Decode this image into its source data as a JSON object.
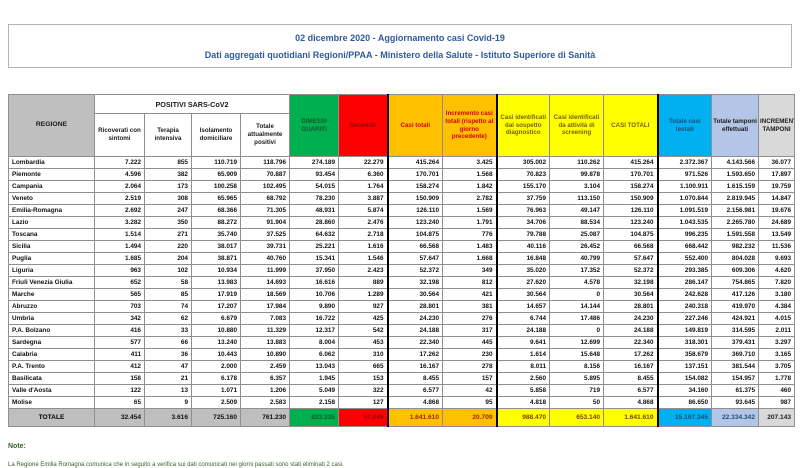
{
  "header": {
    "title_line": "02 dicembre 2020 - Aggiornamento casi Covid-19",
    "subtitle_line": "Dati aggregati quotidiani Regioni/PPAA - Ministero della Salute - Istituto Superiore di Sanità"
  },
  "table": {
    "headers": {
      "regione": "REGIONE",
      "positivi_group": "POSITIVI SARS-CoV2",
      "sub": [
        "Ricoverati con sintomi",
        "Terapia intensiva",
        "Isolamento domiciliare",
        "Totale attualmente positivi"
      ],
      "guariti": "DIMESSI GUARITI",
      "deceduti": "Deceduti",
      "casi_totali": "Casi totali",
      "incremento": "Incremento casi totali (rispetto al giorno precedente)",
      "sospetto": "Casi identificati dal sospetto diagnostico",
      "screening": "Casi identificati da attività di screening",
      "casi_totali_2": "CASI TOTALI",
      "testati": "Totale casi testati",
      "tamponi": "Totale tamponi effettuati",
      "incremento_tamponi": "INCREMENTO TAMPONI"
    },
    "rows": [
      {
        "region": "Lombardia",
        "values": [
          "7.222",
          "855",
          "110.719",
          "118.796",
          "274.189",
          "22.279",
          "415.264",
          "3.425",
          "305.002",
          "110.262",
          "415.264",
          "2.372.367",
          "4.143.566",
          "36.077"
        ]
      },
      {
        "region": "Piemonte",
        "values": [
          "4.596",
          "382",
          "65.909",
          "70.887",
          "93.454",
          "6.360",
          "170.701",
          "1.568",
          "70.823",
          "99.878",
          "170.701",
          "971.526",
          "1.593.650",
          "17.897"
        ]
      },
      {
        "region": "Campania",
        "values": [
          "2.064",
          "173",
          "100.258",
          "102.495",
          "54.015",
          "1.764",
          "158.274",
          "1.842",
          "155.170",
          "3.104",
          "158.274",
          "1.100.911",
          "1.615.159",
          "19.759"
        ]
      },
      {
        "region": "Veneto",
        "values": [
          "2.519",
          "308",
          "65.965",
          "68.792",
          "78.230",
          "3.887",
          "150.909",
          "2.782",
          "37.759",
          "113.150",
          "150.909",
          "1.070.844",
          "2.819.945",
          "14.847"
        ]
      },
      {
        "region": "Emilia-Romagna",
        "values": [
          "2.692",
          "247",
          "68.366",
          "71.305",
          "48.931",
          "5.874",
          "126.110",
          "1.569",
          "76.963",
          "49.147",
          "126.110",
          "1.091.519",
          "2.156.981",
          "19.676"
        ]
      },
      {
        "region": "Lazio",
        "values": [
          "3.282",
          "350",
          "88.272",
          "91.904",
          "28.860",
          "2.476",
          "123.240",
          "1.791",
          "34.706",
          "88.534",
          "123.240",
          "1.043.535",
          "2.265.780",
          "24.689"
        ]
      },
      {
        "region": "Toscana",
        "values": [
          "1.514",
          "271",
          "35.740",
          "37.525",
          "64.632",
          "2.718",
          "104.875",
          "776",
          "79.788",
          "25.087",
          "104.875",
          "996.235",
          "1.591.558",
          "13.549"
        ]
      },
      {
        "region": "Sicilia",
        "values": [
          "1.494",
          "220",
          "38.017",
          "39.731",
          "25.221",
          "1.616",
          "66.568",
          "1.483",
          "40.116",
          "26.452",
          "66.568",
          "668.442",
          "982.232",
          "11.536"
        ]
      },
      {
        "region": "Puglia",
        "values": [
          "1.685",
          "204",
          "38.871",
          "40.760",
          "15.341",
          "1.546",
          "57.647",
          "1.668",
          "16.848",
          "40.799",
          "57.647",
          "552.400",
          "804.028",
          "9.693"
        ]
      },
      {
        "region": "Liguria",
        "values": [
          "963",
          "102",
          "10.934",
          "11.999",
          "37.950",
          "2.423",
          "52.372",
          "349",
          "35.020",
          "17.352",
          "52.372",
          "293.385",
          "609.306",
          "4.620"
        ]
      },
      {
        "region": "Friuli Venezia Giulia",
        "values": [
          "652",
          "58",
          "13.983",
          "14.693",
          "16.616",
          "889",
          "32.198",
          "812",
          "27.620",
          "4.578",
          "32.198",
          "286.147",
          "754.865",
          "7.820"
        ]
      },
      {
        "region": "Marche",
        "values": [
          "565",
          "85",
          "17.919",
          "18.569",
          "10.706",
          "1.289",
          "30.564",
          "421",
          "30.564",
          "0",
          "30.564",
          "242.628",
          "417.126",
          "3.180"
        ]
      },
      {
        "region": "Abruzzo",
        "values": [
          "703",
          "74",
          "17.207",
          "17.984",
          "9.890",
          "927",
          "28.801",
          "381",
          "14.657",
          "14.144",
          "28.801",
          "240.318",
          "419.970",
          "4.384"
        ]
      },
      {
        "region": "Umbria",
        "values": [
          "342",
          "62",
          "6.679",
          "7.083",
          "16.722",
          "425",
          "24.230",
          "276",
          "6.744",
          "17.486",
          "24.230",
          "227.246",
          "424.921",
          "4.015"
        ]
      },
      {
        "region": "P.A. Bolzano",
        "values": [
          "416",
          "33",
          "10.880",
          "11.329",
          "12.317",
          "542",
          "24.188",
          "317",
          "24.188",
          "0",
          "24.188",
          "149.819",
          "314.595",
          "2.011"
        ]
      },
      {
        "region": "Sardegna",
        "values": [
          "577",
          "66",
          "13.240",
          "13.883",
          "8.004",
          "453",
          "22.340",
          "445",
          "9.641",
          "12.699",
          "22.340",
          "318.301",
          "379.431",
          "3.297"
        ]
      },
      {
        "region": "Calabria",
        "values": [
          "411",
          "36",
          "10.443",
          "10.890",
          "6.062",
          "310",
          "17.262",
          "230",
          "1.614",
          "15.648",
          "17.262",
          "358.679",
          "369.710",
          "3.165"
        ]
      },
      {
        "region": "P.A. Trento",
        "values": [
          "412",
          "47",
          "2.000",
          "2.459",
          "13.043",
          "665",
          "16.167",
          "278",
          "8.011",
          "8.156",
          "16.167",
          "137.151",
          "381.544",
          "3.705"
        ]
      },
      {
        "region": "Basilicata",
        "values": [
          "158",
          "21",
          "6.178",
          "6.357",
          "1.945",
          "153",
          "8.455",
          "157",
          "2.560",
          "5.895",
          "8.455",
          "154.082",
          "154.957",
          "1.778"
        ]
      },
      {
        "region": "Valle d'Aosta",
        "values": [
          "122",
          "13",
          "1.071",
          "1.206",
          "5.049",
          "322",
          "6.577",
          "42",
          "5.858",
          "719",
          "6.577",
          "34.160",
          "61.375",
          "460"
        ]
      },
      {
        "region": "Molise",
        "values": [
          "65",
          "9",
          "2.509",
          "2.583",
          "2.158",
          "127",
          "4.868",
          "95",
          "4.818",
          "50",
          "4.868",
          "86.650",
          "93.645",
          "987"
        ]
      }
    ],
    "total": {
      "label": "TOTALE",
      "values": [
        "32.454",
        "3.616",
        "725.160",
        "761.230",
        "823.335",
        "57.045",
        "1.641.610",
        "20.709",
        "988.470",
        "653.140",
        "1.641.610",
        "15.167.345",
        "22.334.342",
        "207.143"
      ]
    }
  },
  "note": {
    "label": "Note:",
    "text": "La Regione Emilia Romagna comunica che in seguito a verifica sui dati comunicati nei giorni passati sono stati eliminati 2 casi."
  },
  "colors": {
    "title_blue": "#2F5B99",
    "green": "#00B050",
    "red": "#FF0000",
    "orange": "#FFC000",
    "yellow": "#FFFF00",
    "cyan": "#00B0F0",
    "periwinkle": "#B4C6E7",
    "header_gray": "#BFBFBF",
    "light_gray": "#D9D9D9"
  }
}
